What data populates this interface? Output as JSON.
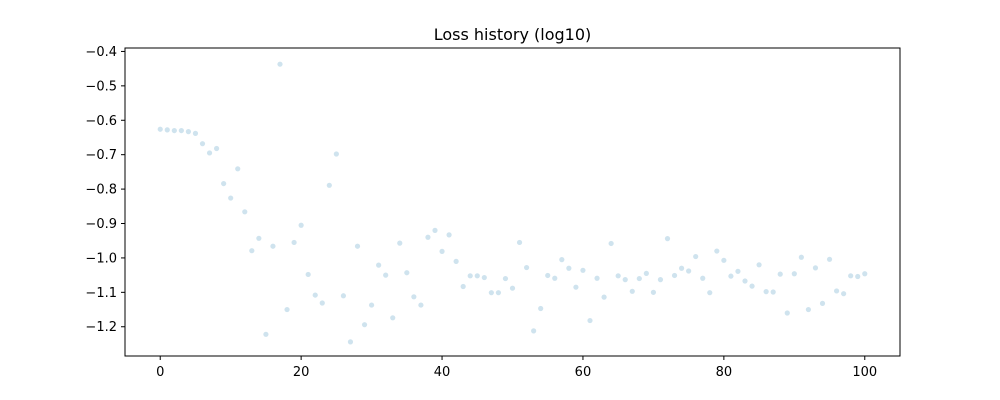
{
  "chart_data": {
    "type": "scatter",
    "title": "Loss history (log10)",
    "xlabel": "",
    "ylabel": "",
    "xlim": [
      -5,
      105
    ],
    "ylim": [
      -1.285,
      -0.39
    ],
    "x_ticks": [
      0,
      20,
      40,
      60,
      80,
      100
    ],
    "y_ticks": [
      -1.2,
      -1.1,
      -1.0,
      -0.9,
      -0.8,
      -0.7,
      -0.6,
      -0.5,
      -0.4
    ],
    "y_tick_labels": [
      "−1.2",
      "−1.1",
      "−1.0",
      "−0.9",
      "−0.8",
      "−0.7",
      "−0.6",
      "−0.5",
      "−0.4"
    ],
    "grid": false,
    "marker_color": "#cfe3ee",
    "series": [
      {
        "x": [
          0,
          1,
          2,
          3,
          4,
          5,
          6,
          7,
          8,
          9,
          10,
          11,
          12,
          13,
          14,
          15,
          16,
          17,
          18,
          19,
          20,
          21,
          22,
          23,
          24,
          25,
          26,
          27,
          28,
          29,
          30,
          31,
          32,
          33,
          34,
          35,
          36,
          37,
          38,
          39,
          40,
          41,
          42,
          43,
          44,
          45,
          46,
          47,
          48,
          49,
          50,
          51,
          52,
          53,
          54,
          55,
          56,
          57,
          58,
          59,
          60,
          61,
          62,
          63,
          64,
          65,
          66,
          67,
          68,
          69,
          70,
          71,
          72,
          73,
          74,
          75,
          76,
          77,
          78,
          79,
          80,
          81,
          82,
          83,
          84,
          85,
          86,
          87,
          88,
          89,
          90,
          91,
          92,
          93,
          94,
          95,
          96,
          97,
          98,
          99,
          100
        ],
        "y": [
          -0.626,
          -0.628,
          -0.63,
          -0.63,
          -0.633,
          -0.638,
          -0.668,
          -0.695,
          -0.682,
          -0.784,
          -0.826,
          -0.741,
          -0.866,
          -0.979,
          -0.943,
          -1.222,
          -0.966,
          -0.437,
          -1.15,
          -0.955,
          -0.905,
          -1.048,
          -1.108,
          -1.131,
          -0.789,
          -0.698,
          -1.11,
          -1.244,
          -0.966,
          -1.194,
          -1.137,
          -1.021,
          -1.05,
          -1.174,
          -0.957,
          -1.043,
          -1.113,
          -1.137,
          -0.94,
          -0.92,
          -0.981,
          -0.933,
          -1.01,
          -1.083,
          -1.052,
          -1.052,
          -1.057,
          -1.101,
          -1.101,
          -1.06,
          -1.088,
          -0.955,
          -1.028,
          -1.212,
          -1.147,
          -1.051,
          -1.059,
          -1.005,
          -1.03,
          -1.085,
          -1.036,
          -1.182,
          -1.059,
          -1.114,
          -0.958,
          -1.052,
          -1.063,
          -1.097,
          -1.06,
          -1.045,
          -1.1,
          -1.063,
          -0.944,
          -1.051,
          -1.03,
          -1.038,
          -0.996,
          -1.059,
          -1.101,
          -0.98,
          -1.007,
          -1.053,
          -1.039,
          -1.067,
          -1.082,
          -1.02,
          -1.098,
          -1.099,
          -1.047,
          -1.16,
          -1.046,
          -0.998,
          -1.15,
          -1.029,
          -1.132,
          -1.004,
          -1.096,
          -1.104,
          -1.052,
          -1.054,
          -1.046
        ]
      }
    ]
  }
}
